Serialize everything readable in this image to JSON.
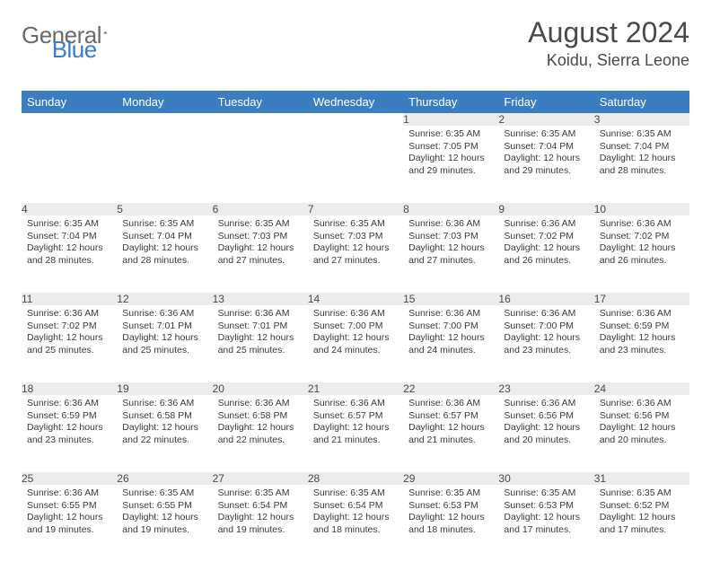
{
  "logo": {
    "text1": "General",
    "text2": "Blue"
  },
  "title": "August 2024",
  "location": "Koidu, Sierra Leone",
  "colors": {
    "header_bg": "#3a7ebf",
    "header_text": "#ffffff",
    "daynum_bg": "#ececec",
    "border": "#3a7ebf",
    "text": "#4a4a4a"
  },
  "weekdays": [
    "Sunday",
    "Monday",
    "Tuesday",
    "Wednesday",
    "Thursday",
    "Friday",
    "Saturday"
  ],
  "weeks": [
    [
      null,
      null,
      null,
      null,
      {
        "n": "1",
        "sr": "6:35 AM",
        "ss": "7:05 PM",
        "dl": "12 hours and 29 minutes."
      },
      {
        "n": "2",
        "sr": "6:35 AM",
        "ss": "7:04 PM",
        "dl": "12 hours and 29 minutes."
      },
      {
        "n": "3",
        "sr": "6:35 AM",
        "ss": "7:04 PM",
        "dl": "12 hours and 28 minutes."
      }
    ],
    [
      {
        "n": "4",
        "sr": "6:35 AM",
        "ss": "7:04 PM",
        "dl": "12 hours and 28 minutes."
      },
      {
        "n": "5",
        "sr": "6:35 AM",
        "ss": "7:04 PM",
        "dl": "12 hours and 28 minutes."
      },
      {
        "n": "6",
        "sr": "6:35 AM",
        "ss": "7:03 PM",
        "dl": "12 hours and 27 minutes."
      },
      {
        "n": "7",
        "sr": "6:35 AM",
        "ss": "7:03 PM",
        "dl": "12 hours and 27 minutes."
      },
      {
        "n": "8",
        "sr": "6:36 AM",
        "ss": "7:03 PM",
        "dl": "12 hours and 27 minutes."
      },
      {
        "n": "9",
        "sr": "6:36 AM",
        "ss": "7:02 PM",
        "dl": "12 hours and 26 minutes."
      },
      {
        "n": "10",
        "sr": "6:36 AM",
        "ss": "7:02 PM",
        "dl": "12 hours and 26 minutes."
      }
    ],
    [
      {
        "n": "11",
        "sr": "6:36 AM",
        "ss": "7:02 PM",
        "dl": "12 hours and 25 minutes."
      },
      {
        "n": "12",
        "sr": "6:36 AM",
        "ss": "7:01 PM",
        "dl": "12 hours and 25 minutes."
      },
      {
        "n": "13",
        "sr": "6:36 AM",
        "ss": "7:01 PM",
        "dl": "12 hours and 25 minutes."
      },
      {
        "n": "14",
        "sr": "6:36 AM",
        "ss": "7:00 PM",
        "dl": "12 hours and 24 minutes."
      },
      {
        "n": "15",
        "sr": "6:36 AM",
        "ss": "7:00 PM",
        "dl": "12 hours and 24 minutes."
      },
      {
        "n": "16",
        "sr": "6:36 AM",
        "ss": "7:00 PM",
        "dl": "12 hours and 23 minutes."
      },
      {
        "n": "17",
        "sr": "6:36 AM",
        "ss": "6:59 PM",
        "dl": "12 hours and 23 minutes."
      }
    ],
    [
      {
        "n": "18",
        "sr": "6:36 AM",
        "ss": "6:59 PM",
        "dl": "12 hours and 23 minutes."
      },
      {
        "n": "19",
        "sr": "6:36 AM",
        "ss": "6:58 PM",
        "dl": "12 hours and 22 minutes."
      },
      {
        "n": "20",
        "sr": "6:36 AM",
        "ss": "6:58 PM",
        "dl": "12 hours and 22 minutes."
      },
      {
        "n": "21",
        "sr": "6:36 AM",
        "ss": "6:57 PM",
        "dl": "12 hours and 21 minutes."
      },
      {
        "n": "22",
        "sr": "6:36 AM",
        "ss": "6:57 PM",
        "dl": "12 hours and 21 minutes."
      },
      {
        "n": "23",
        "sr": "6:36 AM",
        "ss": "6:56 PM",
        "dl": "12 hours and 20 minutes."
      },
      {
        "n": "24",
        "sr": "6:36 AM",
        "ss": "6:56 PM",
        "dl": "12 hours and 20 minutes."
      }
    ],
    [
      {
        "n": "25",
        "sr": "6:36 AM",
        "ss": "6:55 PM",
        "dl": "12 hours and 19 minutes."
      },
      {
        "n": "26",
        "sr": "6:35 AM",
        "ss": "6:55 PM",
        "dl": "12 hours and 19 minutes."
      },
      {
        "n": "27",
        "sr": "6:35 AM",
        "ss": "6:54 PM",
        "dl": "12 hours and 19 minutes."
      },
      {
        "n": "28",
        "sr": "6:35 AM",
        "ss": "6:54 PM",
        "dl": "12 hours and 18 minutes."
      },
      {
        "n": "29",
        "sr": "6:35 AM",
        "ss": "6:53 PM",
        "dl": "12 hours and 18 minutes."
      },
      {
        "n": "30",
        "sr": "6:35 AM",
        "ss": "6:53 PM",
        "dl": "12 hours and 17 minutes."
      },
      {
        "n": "31",
        "sr": "6:35 AM",
        "ss": "6:52 PM",
        "dl": "12 hours and 17 minutes."
      }
    ]
  ],
  "labels": {
    "sunrise": "Sunrise: ",
    "sunset": "Sunset: ",
    "daylight": "Daylight: "
  }
}
